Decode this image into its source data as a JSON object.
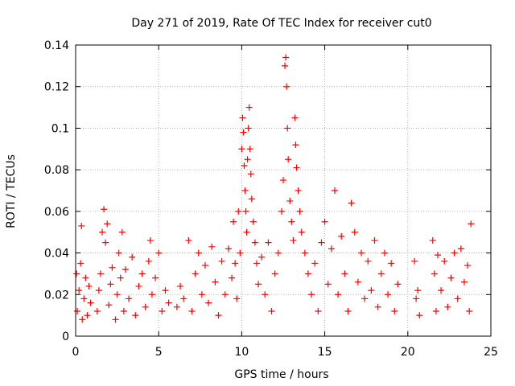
{
  "chart_data": {
    "type": "scatter",
    "title": "Day 271 of 2019, Rate Of TEC Index for receiver cut0",
    "xlabel": "GPS time / hours",
    "ylabel": "ROTI / TECUs",
    "xlim": [
      0,
      25
    ],
    "ylim": [
      0,
      0.14
    ],
    "x_ticks": [
      0,
      5,
      10,
      15,
      20,
      25
    ],
    "x_tick_labels": [
      "0",
      "5",
      "10",
      "15",
      "20",
      "25"
    ],
    "y_ticks": [
      0,
      0.02,
      0.04,
      0.06,
      0.08,
      0.1,
      0.12,
      0.14
    ],
    "y_tick_labels": [
      "0",
      "0.02",
      "0.04",
      "0.06",
      "0.08",
      "0.1",
      "0.12",
      "0.14"
    ],
    "grid": true,
    "marker": "plus",
    "point_color": "#ff0000",
    "series": [
      {
        "name": "ROTI",
        "points": [
          [
            0.05,
            0.03
          ],
          [
            0.1,
            0.012
          ],
          [
            0.2,
            0.022
          ],
          [
            0.3,
            0.035
          ],
          [
            0.35,
            0.053
          ],
          [
            0.4,
            0.008
          ],
          [
            0.5,
            0.018
          ],
          [
            0.6,
            0.028
          ],
          [
            0.7,
            0.01
          ],
          [
            0.8,
            0.024
          ],
          [
            0.9,
            0.016
          ],
          [
            1.3,
            0.012
          ],
          [
            1.4,
            0.022
          ],
          [
            1.5,
            0.03
          ],
          [
            1.6,
            0.05
          ],
          [
            1.7,
            0.061
          ],
          [
            1.8,
            0.045
          ],
          [
            1.9,
            0.054
          ],
          [
            2.0,
            0.015
          ],
          [
            2.1,
            0.025
          ],
          [
            2.2,
            0.033
          ],
          [
            2.4,
            0.008
          ],
          [
            2.5,
            0.02
          ],
          [
            2.6,
            0.04
          ],
          [
            2.7,
            0.028
          ],
          [
            2.8,
            0.05
          ],
          [
            2.9,
            0.012
          ],
          [
            3.0,
            0.032
          ],
          [
            3.2,
            0.018
          ],
          [
            3.4,
            0.038
          ],
          [
            3.6,
            0.01
          ],
          [
            3.8,
            0.024
          ],
          [
            4.0,
            0.03
          ],
          [
            4.2,
            0.014
          ],
          [
            4.4,
            0.036
          ],
          [
            4.5,
            0.046
          ],
          [
            4.6,
            0.02
          ],
          [
            4.8,
            0.028
          ],
          [
            5.0,
            0.04
          ],
          [
            5.2,
            0.012
          ],
          [
            5.4,
            0.022
          ],
          [
            5.6,
            0.016
          ],
          [
            6.1,
            0.014
          ],
          [
            6.3,
            0.024
          ],
          [
            6.5,
            0.018
          ],
          [
            6.8,
            0.046
          ],
          [
            7.0,
            0.012
          ],
          [
            7.2,
            0.03
          ],
          [
            7.4,
            0.04
          ],
          [
            7.6,
            0.02
          ],
          [
            7.8,
            0.034
          ],
          [
            8.0,
            0.016
          ],
          [
            8.2,
            0.043
          ],
          [
            8.4,
            0.026
          ],
          [
            8.6,
            0.01
          ],
          [
            8.8,
            0.036
          ],
          [
            9.0,
            0.02
          ],
          [
            9.2,
            0.042
          ],
          [
            9.4,
            0.028
          ],
          [
            9.5,
            0.055
          ],
          [
            9.6,
            0.035
          ],
          [
            9.7,
            0.018
          ],
          [
            9.8,
            0.06
          ],
          [
            9.9,
            0.04
          ],
          [
            10.0,
            0.09
          ],
          [
            10.05,
            0.105
          ],
          [
            10.1,
            0.098
          ],
          [
            10.15,
            0.082
          ],
          [
            10.2,
            0.07
          ],
          [
            10.25,
            0.06
          ],
          [
            10.3,
            0.05
          ],
          [
            10.35,
            0.085
          ],
          [
            10.4,
            0.1
          ],
          [
            10.45,
            0.11
          ],
          [
            10.5,
            0.09
          ],
          [
            10.55,
            0.078
          ],
          [
            10.6,
            0.066
          ],
          [
            10.7,
            0.055
          ],
          [
            10.8,
            0.045
          ],
          [
            10.9,
            0.035
          ],
          [
            11.0,
            0.025
          ],
          [
            11.2,
            0.038
          ],
          [
            11.4,
            0.02
          ],
          [
            11.6,
            0.045
          ],
          [
            11.8,
            0.012
          ],
          [
            12.0,
            0.03
          ],
          [
            12.2,
            0.04
          ],
          [
            12.4,
            0.06
          ],
          [
            12.5,
            0.075
          ],
          [
            12.6,
            0.13
          ],
          [
            12.65,
            0.134
          ],
          [
            12.7,
            0.12
          ],
          [
            12.75,
            0.1
          ],
          [
            12.8,
            0.085
          ],
          [
            12.9,
            0.065
          ],
          [
            13.0,
            0.055
          ],
          [
            13.1,
            0.046
          ],
          [
            13.2,
            0.105
          ],
          [
            13.25,
            0.092
          ],
          [
            13.3,
            0.081
          ],
          [
            13.4,
            0.07
          ],
          [
            13.5,
            0.06
          ],
          [
            13.6,
            0.05
          ],
          [
            13.8,
            0.04
          ],
          [
            14.0,
            0.03
          ],
          [
            14.2,
            0.02
          ],
          [
            14.4,
            0.035
          ],
          [
            14.6,
            0.012
          ],
          [
            14.8,
            0.045
          ],
          [
            15.0,
            0.055
          ],
          [
            15.2,
            0.025
          ],
          [
            15.4,
            0.042
          ],
          [
            15.6,
            0.07
          ],
          [
            15.8,
            0.02
          ],
          [
            16.0,
            0.048
          ],
          [
            16.2,
            0.03
          ],
          [
            16.4,
            0.012
          ],
          [
            16.6,
            0.064
          ],
          [
            16.8,
            0.05
          ],
          [
            17.0,
            0.026
          ],
          [
            17.2,
            0.04
          ],
          [
            17.4,
            0.018
          ],
          [
            17.6,
            0.036
          ],
          [
            17.8,
            0.022
          ],
          [
            18.0,
            0.046
          ],
          [
            18.2,
            0.014
          ],
          [
            18.4,
            0.03
          ],
          [
            18.6,
            0.04
          ],
          [
            18.8,
            0.02
          ],
          [
            19.0,
            0.035
          ],
          [
            19.2,
            0.012
          ],
          [
            19.4,
            0.025
          ],
          [
            20.4,
            0.036
          ],
          [
            20.5,
            0.018
          ],
          [
            20.6,
            0.022
          ],
          [
            20.7,
            0.01
          ],
          [
            21.5,
            0.046
          ],
          [
            21.6,
            0.03
          ],
          [
            21.7,
            0.012
          ],
          [
            21.8,
            0.039
          ],
          [
            22.0,
            0.022
          ],
          [
            22.2,
            0.036
          ],
          [
            22.4,
            0.014
          ],
          [
            22.6,
            0.028
          ],
          [
            22.8,
            0.04
          ],
          [
            23.0,
            0.018
          ],
          [
            23.2,
            0.042
          ],
          [
            23.4,
            0.026
          ],
          [
            23.6,
            0.034
          ],
          [
            23.7,
            0.012
          ],
          [
            23.8,
            0.054
          ]
        ]
      }
    ]
  }
}
